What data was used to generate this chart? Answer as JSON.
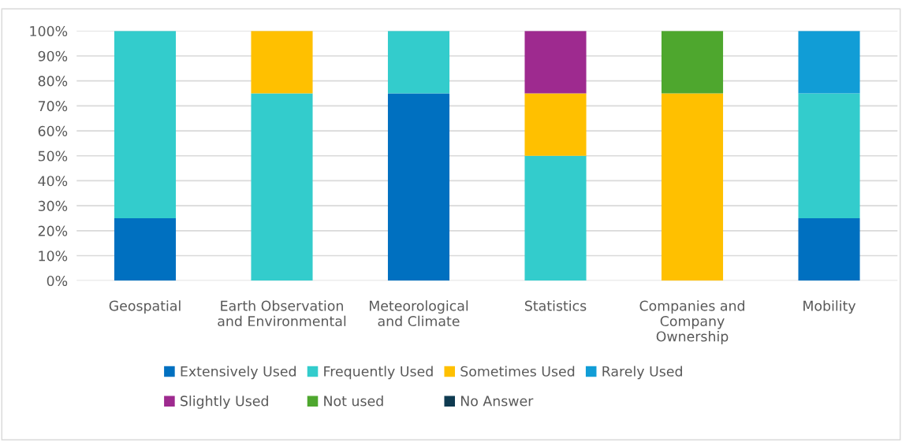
{
  "chart_data": {
    "type": "bar",
    "stacked": true,
    "grid": "y",
    "legend": "bottom",
    "categories": [
      "Geospatial",
      "Earth Observation\nand Environmental",
      "Meteorological\nand Climate",
      "Statistics",
      "Companies and\nCompany\nOwnership",
      "Mobility"
    ],
    "ylim": [
      0,
      100
    ],
    "yticks": [
      {
        "value": 0,
        "label": "0%"
      },
      {
        "value": 10,
        "label": "10%"
      },
      {
        "value": 20,
        "label": "20%"
      },
      {
        "value": 30,
        "label": "30%"
      },
      {
        "value": 40,
        "label": "40%"
      },
      {
        "value": 50,
        "label": "50%"
      },
      {
        "value": 60,
        "label": "60%"
      },
      {
        "value": 70,
        "label": "70%"
      },
      {
        "value": 80,
        "label": "80%"
      },
      {
        "value": 90,
        "label": "90%"
      },
      {
        "value": 100,
        "label": "100%"
      }
    ],
    "series": [
      {
        "name": "Extensively Used",
        "color": "#0070c0",
        "values": [
          25,
          0,
          75,
          0,
          0,
          25
        ]
      },
      {
        "name": "Frequently Used",
        "color": "#33cccc",
        "values": [
          75,
          75,
          25,
          50,
          0,
          50
        ]
      },
      {
        "name": "Sometimes Used",
        "color": "#ffc000",
        "values": [
          0,
          25,
          0,
          25,
          75,
          0
        ]
      },
      {
        "name": "Rarely Used",
        "color": "#119dd6",
        "values": [
          0,
          0,
          0,
          0,
          0,
          25
        ]
      },
      {
        "name": "Slightly Used",
        "color": "#9e2a8f",
        "values": [
          0,
          0,
          0,
          25,
          0,
          0
        ]
      },
      {
        "name": "Not used",
        "color": "#4ea72e",
        "values": [
          0,
          0,
          0,
          0,
          25,
          0
        ]
      },
      {
        "name": "No Answer",
        "color": "#0e3a50",
        "values": [
          0,
          0,
          0,
          0,
          0,
          0
        ]
      }
    ]
  }
}
